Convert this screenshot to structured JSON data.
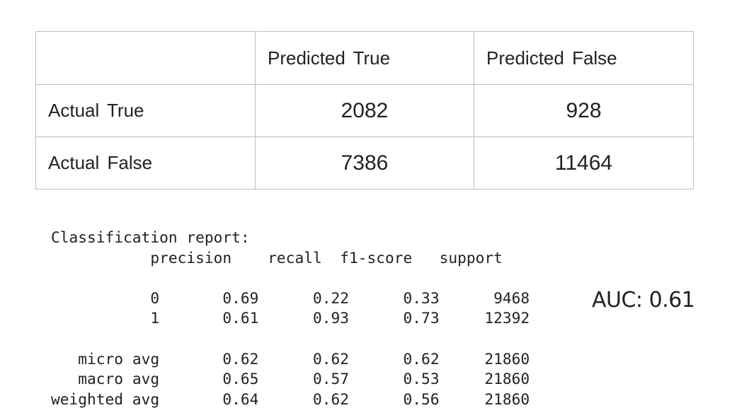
{
  "confusion_matrix": {
    "corner": "",
    "columns": [
      "Predicted  True",
      "Predicted  False"
    ],
    "rows": [
      {
        "label": "Actual  True",
        "values": [
          "2082",
          "928"
        ]
      },
      {
        "label": "Actual  False",
        "values": [
          "7386",
          "11464"
        ]
      }
    ]
  },
  "report": {
    "title": "Classification report:",
    "headers": [
      "precision",
      "recall",
      "f1-score",
      "support"
    ],
    "rows": [
      {
        "label": "0",
        "precision": "0.69",
        "recall": "0.22",
        "f1": "0.33",
        "support": "9468"
      },
      {
        "label": "1",
        "precision": "0.61",
        "recall": "0.93",
        "f1": "0.73",
        "support": "12392"
      },
      {
        "label": "micro avg",
        "precision": "0.62",
        "recall": "0.62",
        "f1": "0.62",
        "support": "21860"
      },
      {
        "label": "macro avg",
        "precision": "0.65",
        "recall": "0.57",
        "f1": "0.53",
        "support": "21860"
      },
      {
        "label": "weighted avg",
        "precision": "0.64",
        "recall": "0.62",
        "f1": "0.56",
        "support": "21860"
      }
    ]
  },
  "auc": {
    "label": "AUC: 0.61"
  }
}
